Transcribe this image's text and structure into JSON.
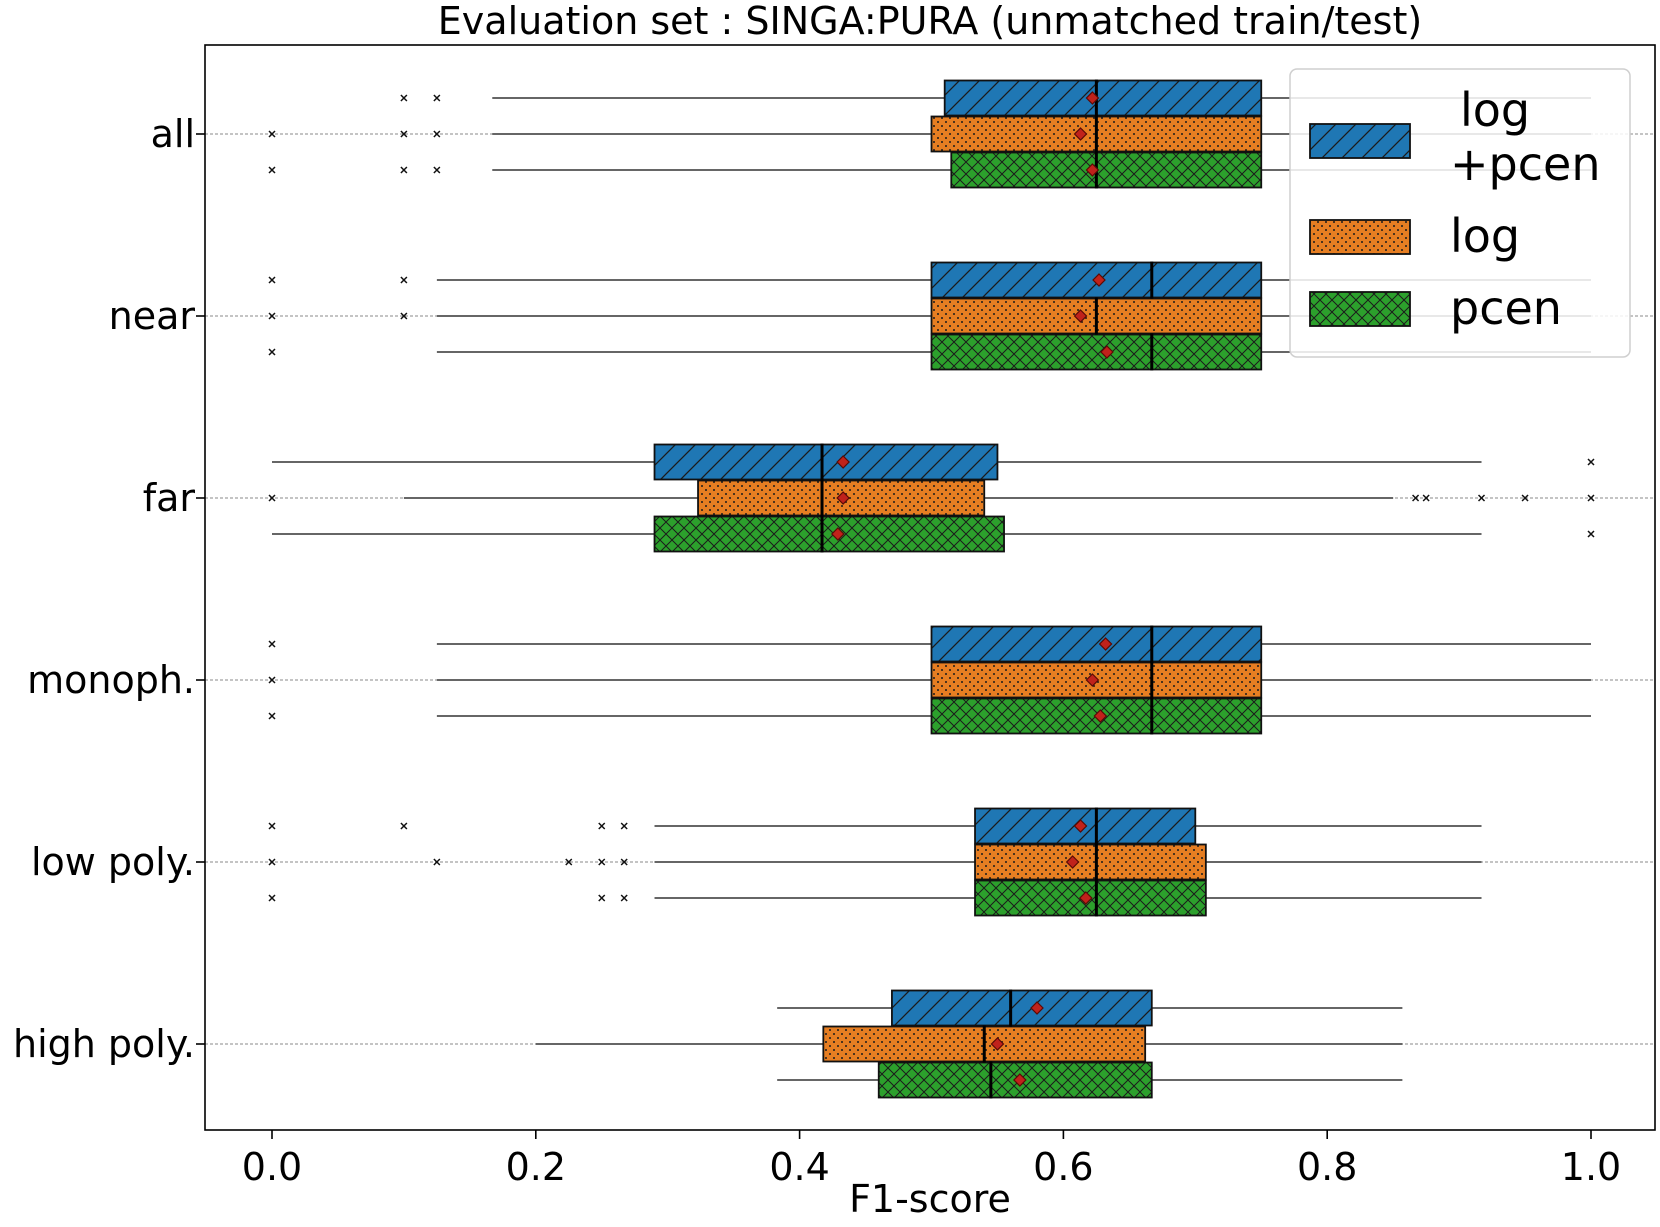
{
  "chart_data": {
    "type": "boxplot",
    "orientation": "horizontal",
    "title": "Evaluation set : SINGA:PURA (unmatched train/test)",
    "xlabel": "F1-score",
    "ylabel": "",
    "xlim": [
      -0.05,
      1.05
    ],
    "xticks": [
      0.0,
      0.2,
      0.4,
      0.6,
      0.8,
      1.0
    ],
    "xtick_labels": [
      "0.0",
      "0.2",
      "0.4",
      "0.6",
      "0.8",
      "1.0"
    ],
    "grid": "horizontal dotted at categories",
    "legend": {
      "placement": "top-right",
      "entries": [
        {
          "label_lines": [
            "log",
            "+pcen"
          ],
          "color": "#1f77b4",
          "hatch": "diagonal"
        },
        {
          "label_lines": [
            "log"
          ],
          "color": "#e67e22",
          "hatch": "dots"
        },
        {
          "label_lines": [
            "pcen"
          ],
          "color": "#2ca02c",
          "hatch": "crosshatch"
        }
      ]
    },
    "categories": [
      "all",
      "near",
      "far",
      "monoph.",
      "low poly.",
      "high poly."
    ],
    "series": [
      {
        "name": "log +pcen",
        "color": "#1f77b4",
        "boxes": [
          {
            "whislo": 0.167,
            "q1": 0.51,
            "med": 0.625,
            "q3": 0.75,
            "whishi": 1.0,
            "mean": 0.622,
            "fliers": [
              0.1,
              0.125
            ]
          },
          {
            "whislo": 0.125,
            "q1": 0.5,
            "med": 0.667,
            "q3": 0.75,
            "whishi": 1.0,
            "mean": 0.627,
            "fliers": [
              0.0,
              0.1
            ]
          },
          {
            "whislo": 0.0,
            "q1": 0.29,
            "med": 0.417,
            "q3": 0.55,
            "whishi": 0.917,
            "mean": 0.433,
            "fliers": [
              1.0
            ]
          },
          {
            "whislo": 0.125,
            "q1": 0.5,
            "med": 0.667,
            "q3": 0.75,
            "whishi": 1.0,
            "mean": 0.632,
            "fliers": [
              0.0
            ]
          },
          {
            "whislo": 0.29,
            "q1": 0.533,
            "med": 0.625,
            "q3": 0.7,
            "whishi": 0.917,
            "mean": 0.613,
            "fliers": [
              0.0,
              0.1,
              0.25,
              0.267
            ]
          },
          {
            "whislo": 0.383,
            "q1": 0.47,
            "med": 0.56,
            "q3": 0.667,
            "whishi": 0.857,
            "mean": 0.58,
            "fliers": []
          }
        ]
      },
      {
        "name": "log",
        "color": "#e67e22",
        "boxes": [
          {
            "whislo": 0.167,
            "q1": 0.5,
            "med": 0.625,
            "q3": 0.75,
            "whishi": 1.0,
            "mean": 0.613,
            "fliers": [
              0.0,
              0.1,
              0.125
            ]
          },
          {
            "whislo": 0.125,
            "q1": 0.5,
            "med": 0.625,
            "q3": 0.75,
            "whishi": 1.0,
            "mean": 0.613,
            "fliers": [
              0.0,
              0.1
            ]
          },
          {
            "whislo": 0.1,
            "q1": 0.323,
            "med": 0.417,
            "q3": 0.54,
            "whishi": 0.85,
            "mean": 0.433,
            "fliers": [
              0.0,
              0.867,
              0.875,
              0.917,
              0.95,
              1.0
            ]
          },
          {
            "whislo": 0.125,
            "q1": 0.5,
            "med": 0.667,
            "q3": 0.75,
            "whishi": 1.0,
            "mean": 0.622,
            "fliers": [
              0.0
            ]
          },
          {
            "whislo": 0.29,
            "q1": 0.533,
            "med": 0.625,
            "q3": 0.708,
            "whishi": 0.917,
            "mean": 0.607,
            "fliers": [
              0.0,
              0.125,
              0.225,
              0.25,
              0.267
            ]
          },
          {
            "whislo": 0.2,
            "q1": 0.418,
            "med": 0.54,
            "q3": 0.662,
            "whishi": 0.857,
            "mean": 0.55,
            "fliers": []
          }
        ]
      },
      {
        "name": "pcen",
        "color": "#2ca02c",
        "boxes": [
          {
            "whislo": 0.167,
            "q1": 0.515,
            "med": 0.625,
            "q3": 0.75,
            "whishi": 1.0,
            "mean": 0.622,
            "fliers": [
              0.0,
              0.1,
              0.125
            ]
          },
          {
            "whislo": 0.125,
            "q1": 0.5,
            "med": 0.667,
            "q3": 0.75,
            "whishi": 1.0,
            "mean": 0.633,
            "fliers": [
              0.0
            ]
          },
          {
            "whislo": 0.0,
            "q1": 0.29,
            "med": 0.417,
            "q3": 0.555,
            "whishi": 0.917,
            "mean": 0.429,
            "fliers": [
              1.0
            ]
          },
          {
            "whislo": 0.125,
            "q1": 0.5,
            "med": 0.667,
            "q3": 0.75,
            "whishi": 1.0,
            "mean": 0.628,
            "fliers": [
              0.0
            ]
          },
          {
            "whislo": 0.29,
            "q1": 0.533,
            "med": 0.625,
            "q3": 0.708,
            "whishi": 0.917,
            "mean": 0.617,
            "fliers": [
              0.0,
              0.25,
              0.267
            ]
          },
          {
            "whislo": 0.383,
            "q1": 0.46,
            "med": 0.545,
            "q3": 0.667,
            "whishi": 0.857,
            "mean": 0.567,
            "fliers": []
          }
        ]
      }
    ]
  }
}
